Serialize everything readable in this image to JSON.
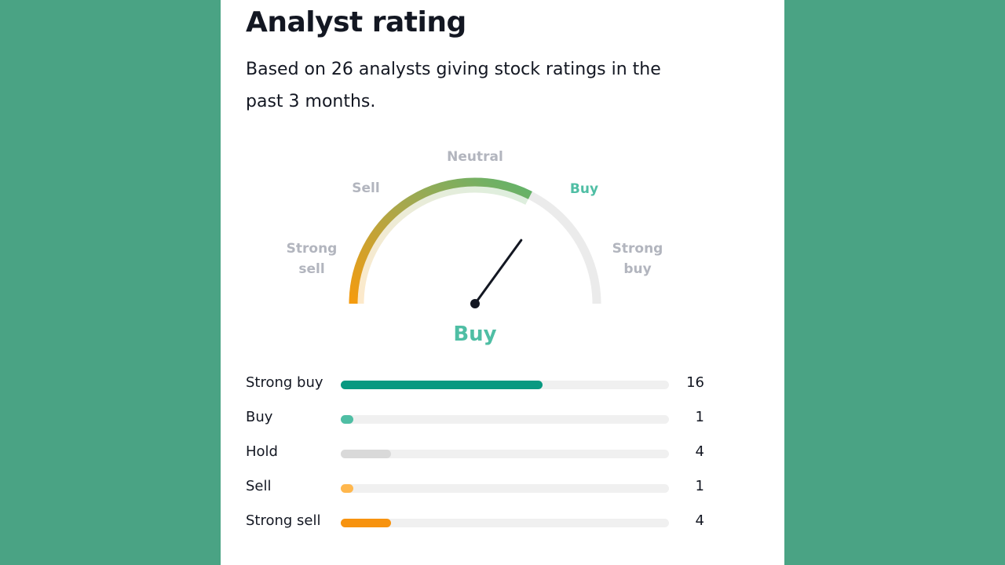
{
  "card": {
    "title": "Analyst rating",
    "subtitle": "Based on 26 analysts giving stock ratings in the past 3 months."
  },
  "gauge": {
    "labels": {
      "strong_sell_line1": "Strong",
      "strong_sell_line2": "sell",
      "sell": "Sell",
      "neutral": "Neutral",
      "buy": "Buy",
      "strong_buy_line1": "Strong",
      "strong_buy_line2": "buy"
    },
    "verdict": "Buy",
    "needle_value_fraction": 0.7,
    "active_arc_fraction": 0.65,
    "colors": {
      "sell_start": "#f59b0e",
      "neutral_mid": "#a6a84e",
      "buy_end": "#5fb36b",
      "track": "#ebebeb",
      "active_label": "#4fbea4"
    }
  },
  "ratings": {
    "total": 26,
    "rows": [
      {
        "label": "Strong buy",
        "count": "16",
        "value": 16,
        "color": "#089981"
      },
      {
        "label": "Buy",
        "count": "1",
        "value": 1,
        "color": "#4fbea4"
      },
      {
        "label": "Hold",
        "count": "4",
        "value": 4,
        "color": "#d9d9d9"
      },
      {
        "label": "Sell",
        "count": "1",
        "value": 1,
        "color": "#ffb74d"
      },
      {
        "label": "Strong sell",
        "count": "4",
        "value": 4,
        "color": "#f7930f"
      }
    ]
  }
}
